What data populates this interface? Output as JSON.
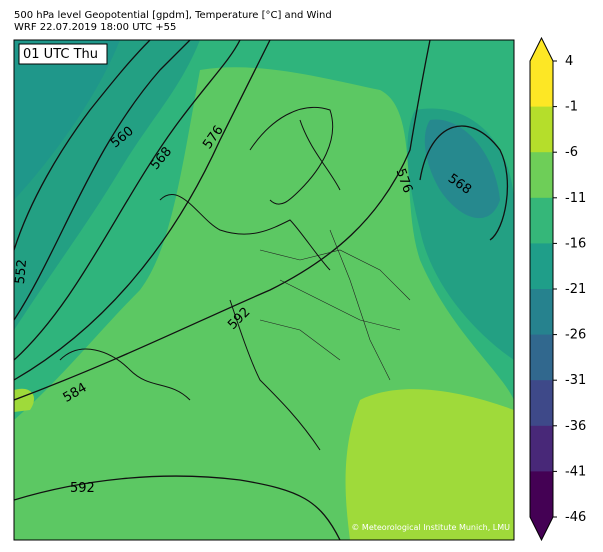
{
  "header": {
    "title": "500 hPa level Geopotential [gpdm], Temperature [°C] and Wind",
    "subtitle": "WRF 22.07.2019 18:00 UTC +55"
  },
  "map": {
    "time_label": "01 UTC Thu",
    "copyright": "© Meteorological Institute Munich, LMU",
    "contour_labels": [
      560,
      568,
      576,
      552,
      592,
      584,
      592,
      568,
      576
    ]
  },
  "colorbar": {
    "ticks": [
      4,
      -1,
      -6,
      -11,
      -16,
      -21,
      -26,
      -31,
      -36,
      -41,
      -46
    ],
    "colors": [
      "#fde725",
      "#b5de2b",
      "#6ece58",
      "#35b779",
      "#1f9e89",
      "#26828e",
      "#31688e",
      "#3e4989",
      "#482878",
      "#440154"
    ],
    "over_color": "#fde725",
    "under_color": "#440154"
  }
}
